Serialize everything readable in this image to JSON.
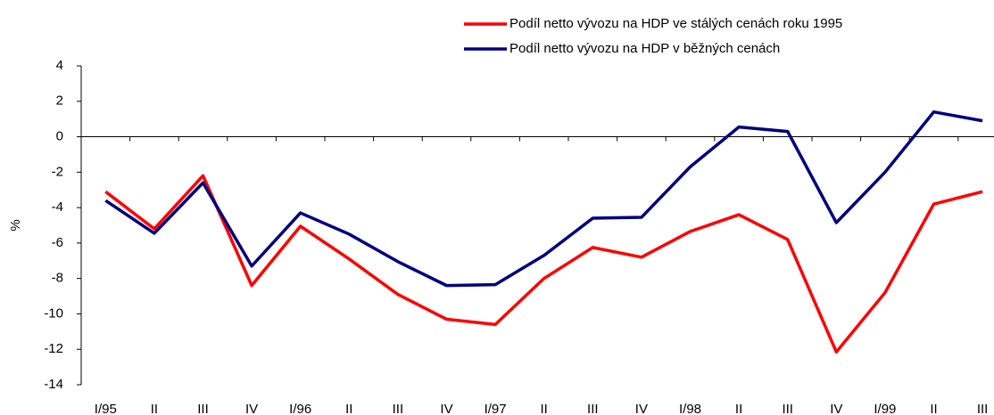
{
  "chart_data": {
    "type": "line",
    "ylabel": "%",
    "categories": [
      "I/95",
      "II",
      "III",
      "IV",
      "I/96",
      "II",
      "III",
      "IV",
      "I/97",
      "II",
      "III",
      "IV",
      "I/98",
      "II",
      "III",
      "IV",
      "I/99",
      "II",
      "III"
    ],
    "series": [
      {
        "name": "Podíl netto vývozu na HDP ve stálých cenách roku 1995",
        "color": "#ff0000",
        "values": [
          -3.1,
          -5.2,
          -2.2,
          -8.4,
          -5.05,
          -6.9,
          -8.9,
          -10.3,
          -10.6,
          -8.0,
          -6.25,
          -6.8,
          -5.35,
          -4.4,
          -5.8,
          -12.15,
          -8.8,
          -3.8,
          -3.1
        ]
      },
      {
        "name": "Podíl netto vývozu na HDP v běžných cenách",
        "color": "#000080",
        "values": [
          -3.6,
          -5.45,
          -2.6,
          -7.3,
          -4.3,
          -5.5,
          -7.05,
          -8.4,
          -8.35,
          -6.7,
          -4.6,
          -4.55,
          -1.7,
          0.55,
          0.3,
          -4.85,
          -2.0,
          1.4,
          0.9
        ]
      }
    ],
    "ylim": [
      -14,
      4
    ],
    "yticks": [
      4,
      2,
      0,
      -2,
      -4,
      -6,
      -8,
      -10,
      -12,
      -14
    ],
    "legend": "top-right"
  }
}
